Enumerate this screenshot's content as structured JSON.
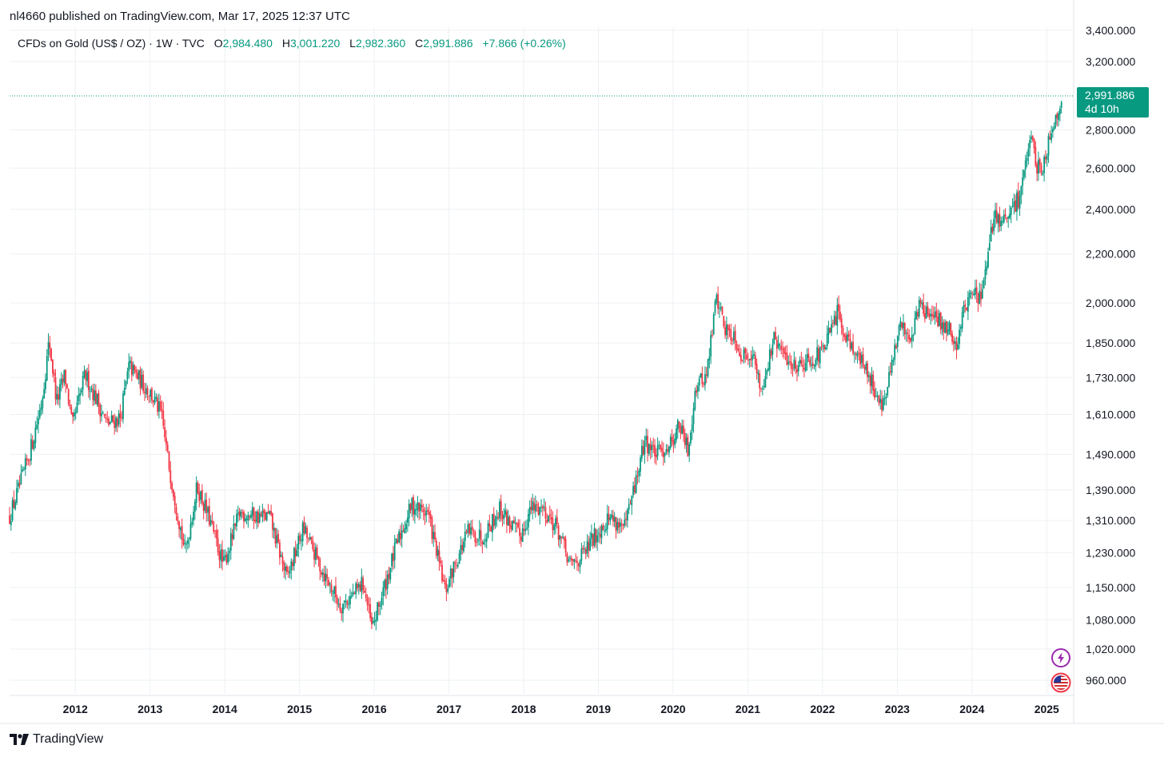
{
  "header": {
    "published": "nl4660 published on TradingView.com, Mar 17, 2025 12:37 UTC"
  },
  "legend": {
    "symbol": "CFDs on Gold (US$ / OZ) · 1W · TVC",
    "o_key": "O",
    "o_val": "2,984.480",
    "h_key": "H",
    "h_val": "3,001.220",
    "l_key": "L",
    "l_val": "2,982.360",
    "c_key": "C",
    "c_val": "2,991.886",
    "change": "+7.866 (+0.26%)"
  },
  "price_tag": {
    "price": "2,991.886",
    "countdown": "4d 10h"
  },
  "footer": {
    "brand": "TradingView"
  },
  "colors": {
    "up": "#089981",
    "down": "#f23645",
    "grid": "#eef0f3",
    "text": "#131722"
  },
  "chart_data": {
    "type": "candlestick",
    "title": "CFDs on Gold (US$ / OZ) · 1W · TVC",
    "interval": "1W",
    "scale": "logarithmic",
    "ylim": [
      935,
      3420
    ],
    "yticks": [
      960,
      1020,
      1080,
      1150,
      1230,
      1310,
      1390,
      1490,
      1610,
      1730,
      1850,
      2000,
      2200,
      2400,
      2600,
      2800,
      3200,
      3400
    ],
    "ytick_labels": [
      "960.000",
      "1,020.000",
      "1,080.000",
      "1,150.000",
      "1,230.000",
      "1,310.000",
      "1,390.000",
      "1,490.000",
      "1,610.000",
      "1,730.000",
      "1,850.000",
      "2,000.000",
      "2,200.000",
      "2,400.000",
      "2,600.000",
      "2,800.000",
      "3,200.000",
      "3,400.000"
    ],
    "xlim": [
      2011.12,
      2025.35
    ],
    "xticks": [
      "2012",
      "2013",
      "2014",
      "2015",
      "2016",
      "2017",
      "2018",
      "2019",
      "2020",
      "2021",
      "2022",
      "2023",
      "2024",
      "2025"
    ],
    "last_price": 2991.886,
    "series_anchors": [
      [
        2011.12,
        1320
      ],
      [
        2011.3,
        1430
      ],
      [
        2011.42,
        1520
      ],
      [
        2011.55,
        1650
      ],
      [
        2011.65,
        1860
      ],
      [
        2011.75,
        1650
      ],
      [
        2011.86,
        1740
      ],
      [
        2011.96,
        1570
      ],
      [
        2012.13,
        1740
      ],
      [
        2012.3,
        1650
      ],
      [
        2012.42,
        1580
      ],
      [
        2012.6,
        1600
      ],
      [
        2012.72,
        1770
      ],
      [
        2012.9,
        1710
      ],
      [
        2013.0,
        1680
      ],
      [
        2013.15,
        1610
      ],
      [
        2013.25,
        1460
      ],
      [
        2013.33,
        1370
      ],
      [
        2013.47,
        1230
      ],
      [
        2013.63,
        1400
      ],
      [
        2013.8,
        1310
      ],
      [
        2013.98,
        1200
      ],
      [
        2014.2,
        1330
      ],
      [
        2014.45,
        1320
      ],
      [
        2014.6,
        1320
      ],
      [
        2014.83,
        1170
      ],
      [
        2015.05,
        1290
      ],
      [
        2015.3,
        1190
      ],
      [
        2015.55,
        1110
      ],
      [
        2015.7,
        1130
      ],
      [
        2015.85,
        1160
      ],
      [
        2015.97,
        1060
      ],
      [
        2016.1,
        1130
      ],
      [
        2016.3,
        1250
      ],
      [
        2016.5,
        1350
      ],
      [
        2016.72,
        1330
      ],
      [
        2016.95,
        1140
      ],
      [
        2017.05,
        1190
      ],
      [
        2017.25,
        1280
      ],
      [
        2017.45,
        1270
      ],
      [
        2017.68,
        1340
      ],
      [
        2017.95,
        1270
      ],
      [
        2018.1,
        1340
      ],
      [
        2018.25,
        1345
      ],
      [
        2018.45,
        1290
      ],
      [
        2018.62,
        1200
      ],
      [
        2018.8,
        1225
      ],
      [
        2018.98,
        1280
      ],
      [
        2019.15,
        1320
      ],
      [
        2019.35,
        1290
      ],
      [
        2019.5,
        1410
      ],
      [
        2019.62,
        1530
      ],
      [
        2019.78,
        1490
      ],
      [
        2019.96,
        1520
      ],
      [
        2020.08,
        1580
      ],
      [
        2020.2,
        1500
      ],
      [
        2020.3,
        1700
      ],
      [
        2020.45,
        1740
      ],
      [
        2020.58,
        2030
      ],
      [
        2020.7,
        1900
      ],
      [
        2020.82,
        1880
      ],
      [
        2020.92,
        1800
      ],
      [
        2021.05,
        1820
      ],
      [
        2021.18,
        1690
      ],
      [
        2021.35,
        1860
      ],
      [
        2021.45,
        1820
      ],
      [
        2021.6,
        1770
      ],
      [
        2021.8,
        1790
      ],
      [
        2021.98,
        1810
      ],
      [
        2022.12,
        1900
      ],
      [
        2022.2,
        1960
      ],
      [
        2022.32,
        1880
      ],
      [
        2022.5,
        1790
      ],
      [
        2022.62,
        1740
      ],
      [
        2022.75,
        1660
      ],
      [
        2022.82,
        1640
      ],
      [
        2022.95,
        1800
      ],
      [
        2023.05,
        1920
      ],
      [
        2023.18,
        1870
      ],
      [
        2023.3,
        2000
      ],
      [
        2023.42,
        1950
      ],
      [
        2023.55,
        1930
      ],
      [
        2023.7,
        1900
      ],
      [
        2023.78,
        1830
      ],
      [
        2023.9,
        1990
      ],
      [
        2024.02,
        2040
      ],
      [
        2024.12,
        2020
      ],
      [
        2024.2,
        2150
      ],
      [
        2024.3,
        2390
      ],
      [
        2024.4,
        2330
      ],
      [
        2024.5,
        2370
      ],
      [
        2024.62,
        2450
      ],
      [
        2024.72,
        2640
      ],
      [
        2024.8,
        2730
      ],
      [
        2024.88,
        2600
      ],
      [
        2024.95,
        2620
      ],
      [
        2025.05,
        2780
      ],
      [
        2025.15,
        2920
      ],
      [
        2025.21,
        2991.886
      ]
    ]
  }
}
